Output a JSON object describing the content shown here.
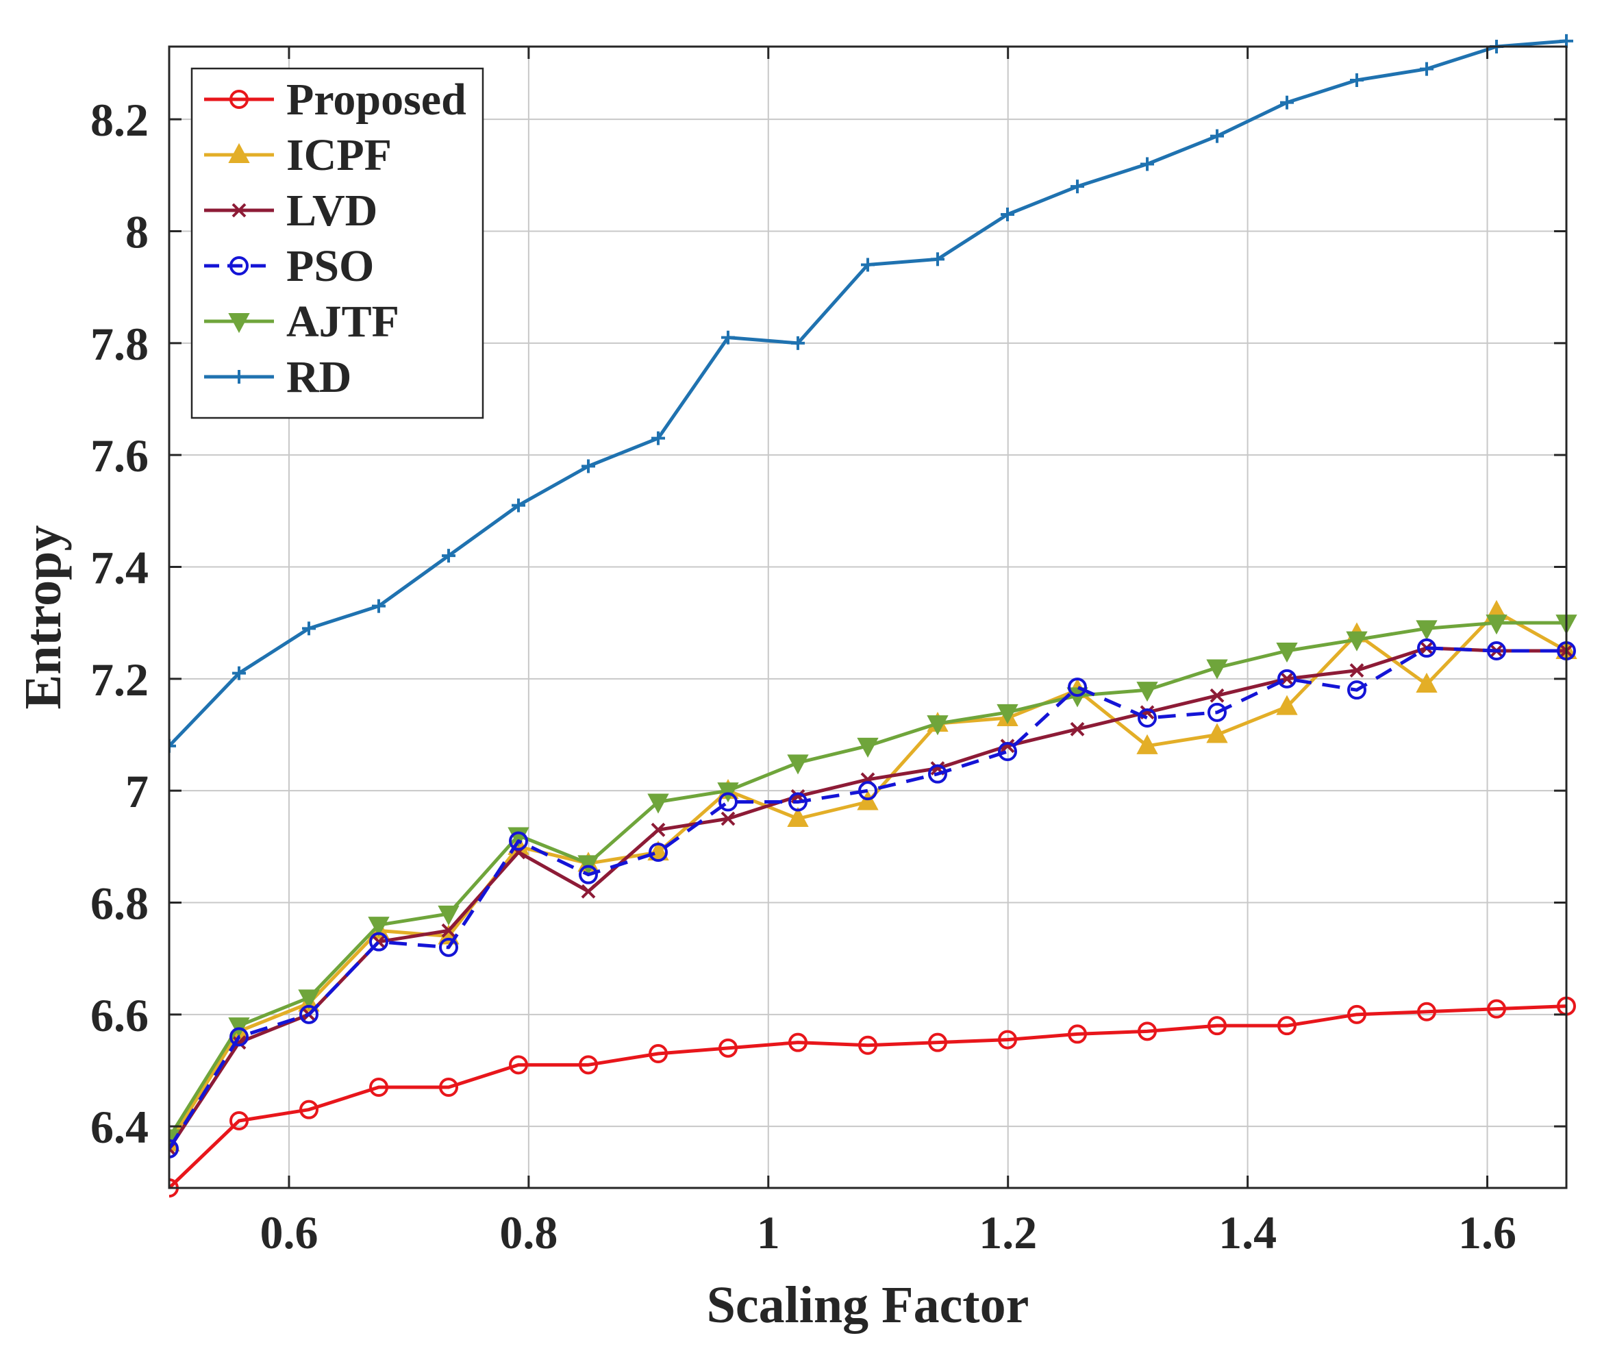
{
  "chart_data": {
    "type": "line",
    "title": "",
    "xlabel": "Scaling Factor",
    "ylabel": "Entropy",
    "xlim": [
      0.5,
      1.666
    ],
    "ylim": [
      6.29,
      8.33
    ],
    "grid": true,
    "legend_position": "top-left",
    "x_ticks": [
      0.6,
      0.8,
      1,
      1.2,
      1.4,
      1.6
    ],
    "x_tick_labels": [
      "0.6",
      "0.8",
      "1",
      "1.2",
      "1.4",
      "1.6"
    ],
    "y_ticks": [
      6.4,
      6.6,
      6.8,
      7,
      7.2,
      7.4,
      7.6,
      7.8,
      8,
      8.2
    ],
    "y_tick_labels": [
      "6.4",
      "6.6",
      "6.8",
      "7",
      "7.2",
      "7.4",
      "7.6",
      "7.8",
      "8",
      "8.2"
    ],
    "x": [
      0.5,
      0.5583,
      0.6166,
      0.6749,
      0.7332,
      0.7915,
      0.8498,
      0.9081,
      0.9664,
      1.0247,
      1.083,
      1.1413,
      1.1996,
      1.2579,
      1.3162,
      1.3745,
      1.4328,
      1.4911,
      1.5494,
      1.6077,
      1.666
    ],
    "series": [
      {
        "name": "Proposed",
        "color": "#e8161b",
        "marker": "circle",
        "dash": "solid",
        "values": [
          6.29,
          6.41,
          6.43,
          6.47,
          6.47,
          6.51,
          6.51,
          6.53,
          6.54,
          6.55,
          6.545,
          6.55,
          6.555,
          6.565,
          6.57,
          6.58,
          6.58,
          6.6,
          6.605,
          6.61,
          6.615
        ]
      },
      {
        "name": "ICPF",
        "color": "#e3ae27",
        "marker": "triangle-up",
        "dash": "solid",
        "values": [
          6.37,
          6.57,
          6.62,
          6.75,
          6.74,
          6.9,
          6.87,
          6.89,
          7.0,
          6.95,
          6.98,
          7.12,
          7.13,
          7.18,
          7.08,
          7.1,
          7.15,
          7.28,
          7.19,
          7.32,
          7.25
        ]
      },
      {
        "name": "LVD",
        "color": "#8d1b36",
        "marker": "x",
        "dash": "solid",
        "values": [
          6.36,
          6.55,
          6.6,
          6.73,
          6.75,
          6.89,
          6.82,
          6.93,
          6.95,
          6.99,
          7.02,
          7.04,
          7.08,
          7.11,
          7.14,
          7.17,
          7.2,
          7.215,
          7.255,
          7.25,
          7.25
        ]
      },
      {
        "name": "PSO",
        "color": "#1414d6",
        "marker": "circle",
        "dash": "dashed",
        "values": [
          6.36,
          6.56,
          6.6,
          6.73,
          6.72,
          6.91,
          6.85,
          6.89,
          6.98,
          6.98,
          7.0,
          7.03,
          7.07,
          7.185,
          7.13,
          7.14,
          7.2,
          7.18,
          7.255,
          7.25,
          7.25
        ]
      },
      {
        "name": "AJTF",
        "color": "#6fa53b",
        "marker": "triangle-down",
        "dash": "solid",
        "values": [
          6.38,
          6.58,
          6.63,
          6.76,
          6.78,
          6.92,
          6.87,
          6.98,
          7.0,
          7.05,
          7.08,
          7.12,
          7.14,
          7.17,
          7.18,
          7.22,
          7.25,
          7.27,
          7.29,
          7.3,
          7.3
        ]
      },
      {
        "name": "RD",
        "color": "#1f72b0",
        "marker": "plus",
        "dash": "solid",
        "values": [
          7.08,
          7.21,
          7.29,
          7.33,
          7.42,
          7.51,
          7.58,
          7.63,
          7.81,
          7.8,
          7.94,
          7.95,
          8.03,
          8.08,
          8.12,
          8.17,
          8.23,
          8.27,
          8.29,
          8.33,
          8.34
        ]
      }
    ]
  }
}
